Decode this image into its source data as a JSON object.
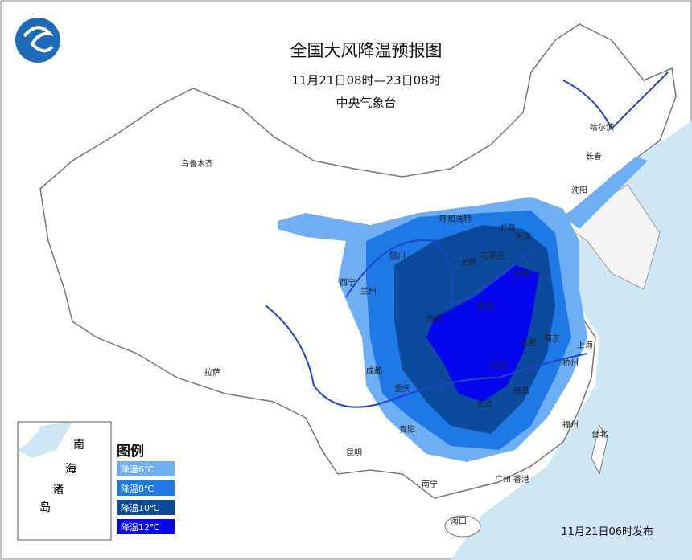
{
  "header": {
    "title": "全国大风降温预报图",
    "subtitle": "11月21日08时—23日08时",
    "agency": "中央气象台"
  },
  "cities": [
    "乌鲁木齐",
    "哈尔滨",
    "长春",
    "沈阳",
    "呼和浩特",
    "北京",
    "天津",
    "银川",
    "太原",
    "石家庄",
    "济南",
    "西宁",
    "兰州",
    "郑州",
    "西安",
    "南京",
    "合肥",
    "上海",
    "武汉",
    "杭州",
    "成都",
    "重庆",
    "长沙",
    "南昌",
    "拉萨",
    "贵阳",
    "福州",
    "台北",
    "昆明",
    "南宁",
    "广州",
    "香港",
    "海口"
  ],
  "legend": {
    "title": "图例",
    "items": [
      {
        "label": "降温6℃",
        "color": "#6eaef2"
      },
      {
        "label": "降温8℃",
        "color": "#1e78e6"
      },
      {
        "label": "降温10℃",
        "color": "#0b4a9c"
      },
      {
        "label": "降温12℃",
        "color": "#0606ee"
      }
    ]
  },
  "inset": {
    "labels": [
      "南",
      "海",
      "诸",
      "岛"
    ]
  },
  "footer": {
    "issued": "11月21日06时发布"
  }
}
